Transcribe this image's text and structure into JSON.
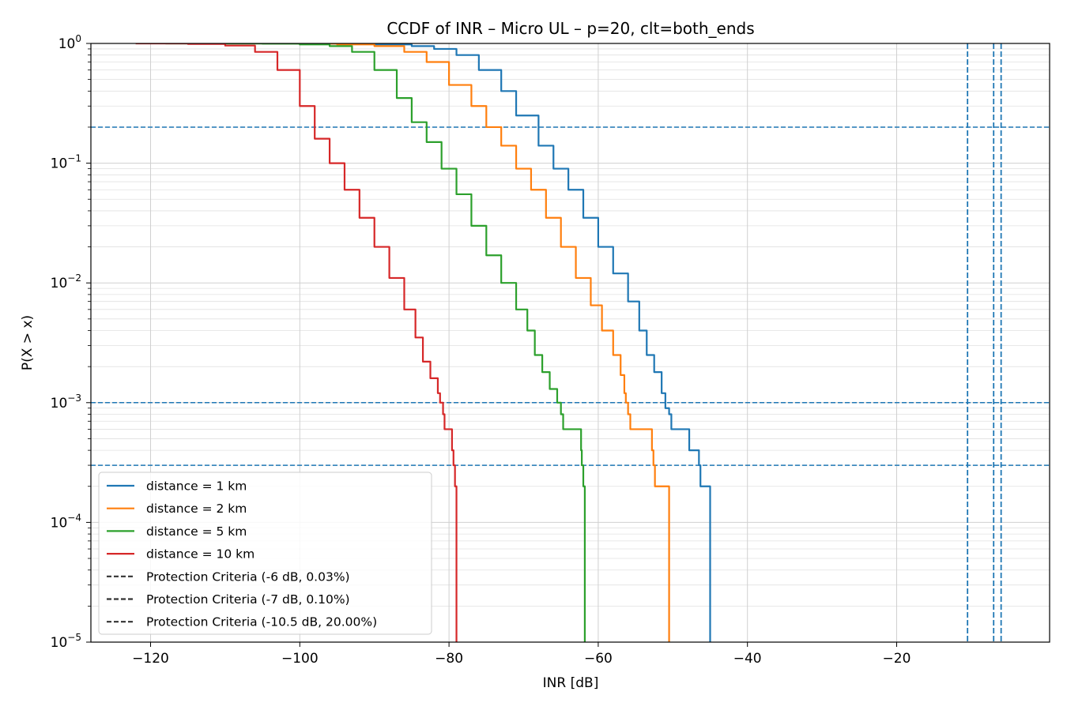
{
  "chart_data": {
    "type": "line",
    "title": "CCDF of INR – Micro UL – p=20, clt=both_ends",
    "xlabel": "INR [dB]",
    "ylabel": "P(X > x)",
    "xlim": [
      -128,
      0.5
    ],
    "ylim": [
      1e-05,
      1
    ],
    "yscale": "log",
    "grid": true,
    "legend_position": "lower-left",
    "x_ticks": [
      {
        "value": -120,
        "label": "−120"
      },
      {
        "value": -100,
        "label": "−100"
      },
      {
        "value": -80,
        "label": "−80"
      },
      {
        "value": -60,
        "label": "−60"
      },
      {
        "value": -40,
        "label": "−40"
      },
      {
        "value": -20,
        "label": "−20"
      }
    ],
    "y_ticks": [
      {
        "exp": 0,
        "base": "10",
        "label": "0"
      },
      {
        "exp": -1,
        "base": "10",
        "label": "−1"
      },
      {
        "exp": -2,
        "base": "10",
        "label": "−2"
      },
      {
        "exp": -3,
        "base": "10",
        "label": "−3"
      },
      {
        "exp": -4,
        "base": "10",
        "label": "−4"
      },
      {
        "exp": -5,
        "base": "10",
        "label": "−5"
      }
    ],
    "series": [
      {
        "name": "distance = 1 km",
        "color": "#1f77b4",
        "points": [
          [
            -111,
            1
          ],
          [
            -100,
            0.995
          ],
          [
            -90,
            0.98
          ],
          [
            -85,
            0.95
          ],
          [
            -82,
            0.9
          ],
          [
            -79,
            0.8
          ],
          [
            -76,
            0.6
          ],
          [
            -73,
            0.4
          ],
          [
            -71,
            0.25
          ],
          [
            -68,
            0.14
          ],
          [
            -66,
            0.09
          ],
          [
            -64,
            0.06
          ],
          [
            -62,
            0.035
          ],
          [
            -60,
            0.02
          ],
          [
            -58,
            0.012
          ],
          [
            -56,
            0.007
          ],
          [
            -54.5,
            0.004
          ],
          [
            -53.5,
            0.0025
          ],
          [
            -52.5,
            0.0018
          ],
          [
            -51.5,
            0.0012
          ],
          [
            -51,
            0.0009
          ],
          [
            -50.5,
            0.0008
          ],
          [
            -50.2,
            0.0006
          ],
          [
            -48,
            0.0006
          ],
          [
            -47.8,
            0.0004
          ],
          [
            -46.5,
            0.0003
          ],
          [
            -46.3,
            0.0002
          ],
          [
            -45,
            0.0002
          ],
          [
            -45,
            1e-05
          ]
        ]
      },
      {
        "name": "distance = 2 km",
        "color": "#ff7f0e",
        "points": [
          [
            -115,
            1
          ],
          [
            -100,
            0.995
          ],
          [
            -95,
            0.98
          ],
          [
            -90,
            0.95
          ],
          [
            -86,
            0.85
          ],
          [
            -83,
            0.7
          ],
          [
            -80,
            0.45
          ],
          [
            -77,
            0.3
          ],
          [
            -75,
            0.2
          ],
          [
            -73,
            0.14
          ],
          [
            -71,
            0.09
          ],
          [
            -69,
            0.06
          ],
          [
            -67,
            0.035
          ],
          [
            -65,
            0.02
          ],
          [
            -63,
            0.011
          ],
          [
            -61,
            0.0065
          ],
          [
            -59.5,
            0.004
          ],
          [
            -58,
            0.0025
          ],
          [
            -57,
            0.0017
          ],
          [
            -56.5,
            0.0012
          ],
          [
            -56.3,
            0.001
          ],
          [
            -56,
            0.0008
          ],
          [
            -55.7,
            0.0006
          ],
          [
            -53,
            0.0006
          ],
          [
            -52.8,
            0.0004
          ],
          [
            -52.6,
            0.0003
          ],
          [
            -52.4,
            0.0002
          ],
          [
            -50.5,
            0.0002
          ],
          [
            -50.5,
            1e-05
          ]
        ]
      },
      {
        "name": "distance = 5 km",
        "color": "#2ca02c",
        "points": [
          [
            -118,
            1
          ],
          [
            -105,
            0.995
          ],
          [
            -100,
            0.98
          ],
          [
            -96,
            0.95
          ],
          [
            -93,
            0.85
          ],
          [
            -90,
            0.6
          ],
          [
            -87,
            0.35
          ],
          [
            -85,
            0.22
          ],
          [
            -83,
            0.15
          ],
          [
            -81,
            0.09
          ],
          [
            -79,
            0.055
          ],
          [
            -77,
            0.03
          ],
          [
            -75,
            0.017
          ],
          [
            -73,
            0.01
          ],
          [
            -71,
            0.006
          ],
          [
            -69.5,
            0.004
          ],
          [
            -68.5,
            0.0025
          ],
          [
            -67.5,
            0.0018
          ],
          [
            -66.5,
            0.0013
          ],
          [
            -65.5,
            0.001
          ],
          [
            -65,
            0.0008
          ],
          [
            -64.7,
            0.0006
          ],
          [
            -62.5,
            0.0006
          ],
          [
            -62.3,
            0.0004
          ],
          [
            -62.2,
            0.0003
          ],
          [
            -62,
            0.0002
          ],
          [
            -61.8,
            0.0002
          ],
          [
            -61.8,
            1e-05
          ]
        ]
      },
      {
        "name": "distance = 10 km",
        "color": "#d62728",
        "points": [
          [
            -122,
            1
          ],
          [
            -115,
            0.99
          ],
          [
            -110,
            0.96
          ],
          [
            -106,
            0.85
          ],
          [
            -103,
            0.6
          ],
          [
            -100,
            0.3
          ],
          [
            -98,
            0.16
          ],
          [
            -96,
            0.1
          ],
          [
            -94,
            0.06
          ],
          [
            -92,
            0.035
          ],
          [
            -90,
            0.02
          ],
          [
            -88,
            0.011
          ],
          [
            -86,
            0.006
          ],
          [
            -84.5,
            0.0035
          ],
          [
            -83.5,
            0.0022
          ],
          [
            -82.5,
            0.0016
          ],
          [
            -81.5,
            0.0012
          ],
          [
            -81.2,
            0.001
          ],
          [
            -80.8,
            0.0008
          ],
          [
            -80.6,
            0.0006
          ],
          [
            -79.8,
            0.0006
          ],
          [
            -79.6,
            0.0004
          ],
          [
            -79.4,
            0.0003
          ],
          [
            -79.2,
            0.0002
          ],
          [
            -79,
            0.0002
          ],
          [
            -79,
            1e-05
          ]
        ]
      }
    ],
    "reference_lines": {
      "label_prefix": "Protection Criteria",
      "color": "#1f77b4",
      "horizontal": [
        0.2,
        0.001,
        0.0003
      ],
      "vertical": [
        -10.5,
        -7,
        -6
      ]
    },
    "legend": [
      {
        "label": "distance = 1 km",
        "color": "#1f77b4",
        "style": "solid"
      },
      {
        "label": "distance = 2 km",
        "color": "#ff7f0e",
        "style": "solid"
      },
      {
        "label": "distance = 5 km",
        "color": "#2ca02c",
        "style": "solid"
      },
      {
        "label": "distance = 10 km",
        "color": "#d62728",
        "style": "solid"
      },
      {
        "label": "Protection Criteria (-6 dB, 0.03%)",
        "color": "#333333",
        "style": "dashed"
      },
      {
        "label": "Protection Criteria (-7 dB, 0.10%)",
        "color": "#333333",
        "style": "dashed"
      },
      {
        "label": "Protection Criteria (-10.5 dB, 20.00%)",
        "color": "#333333",
        "style": "dashed"
      }
    ]
  }
}
